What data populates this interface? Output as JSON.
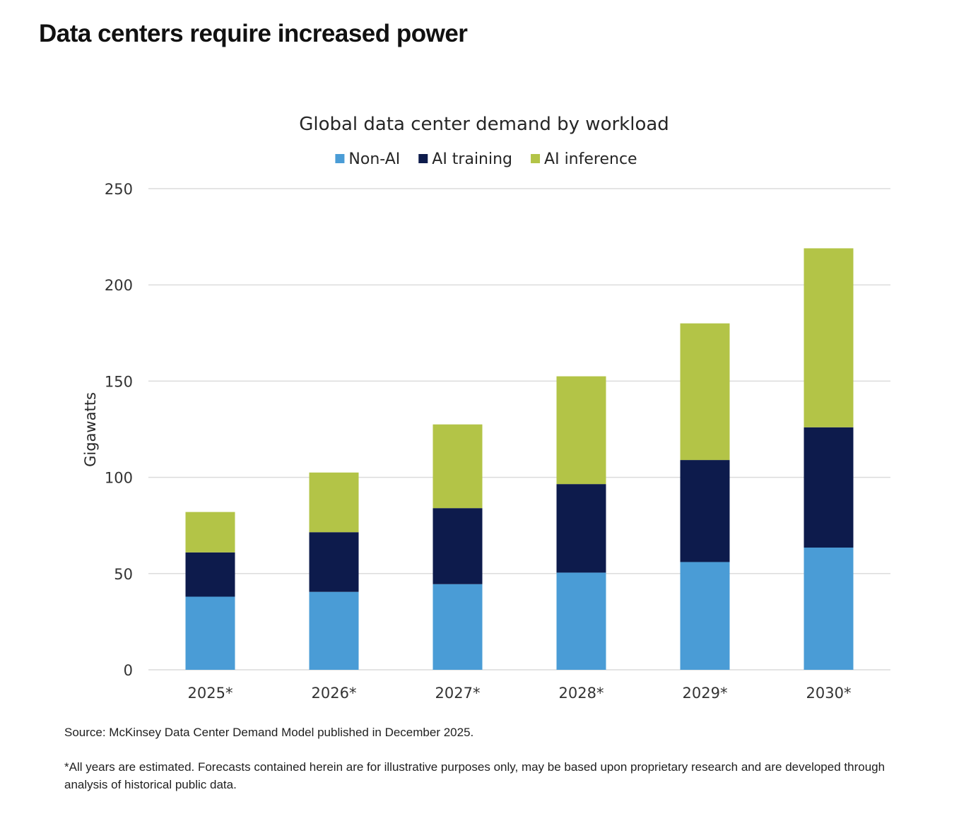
{
  "page": {
    "heading": "Data centers require increased power",
    "source_note": "Source: McKinsey Data Center Demand Model published in December 2025.",
    "disclaimer": "*All years are estimated. Forecasts contained herein are for illustrative purposes only, may be based upon proprietary research and are developed through analysis of historical public data."
  },
  "chart_data": {
    "type": "bar",
    "stacked": true,
    "title": "Global data center demand by workload",
    "xlabel": "",
    "ylabel": "Gigawatts",
    "categories": [
      "2025*",
      "2026*",
      "2027*",
      "2028*",
      "2029*",
      "2030*"
    ],
    "series": [
      {
        "name": "Non-AI",
        "color": "#4a9cd6",
        "values": [
          38,
          40.5,
          44.5,
          50.5,
          56,
          63.5
        ]
      },
      {
        "name": "AI training",
        "color": "#0d1b4c",
        "values": [
          23,
          31,
          39.5,
          46,
          53,
          62.5
        ]
      },
      {
        "name": "AI inference",
        "color": "#b3c447",
        "values": [
          21,
          31,
          43.5,
          56,
          71,
          93
        ]
      }
    ],
    "ylim": [
      0,
      250
    ],
    "yticks": [
      0,
      50,
      100,
      150,
      200,
      250
    ],
    "grid": true,
    "legend_position": "top-center"
  }
}
